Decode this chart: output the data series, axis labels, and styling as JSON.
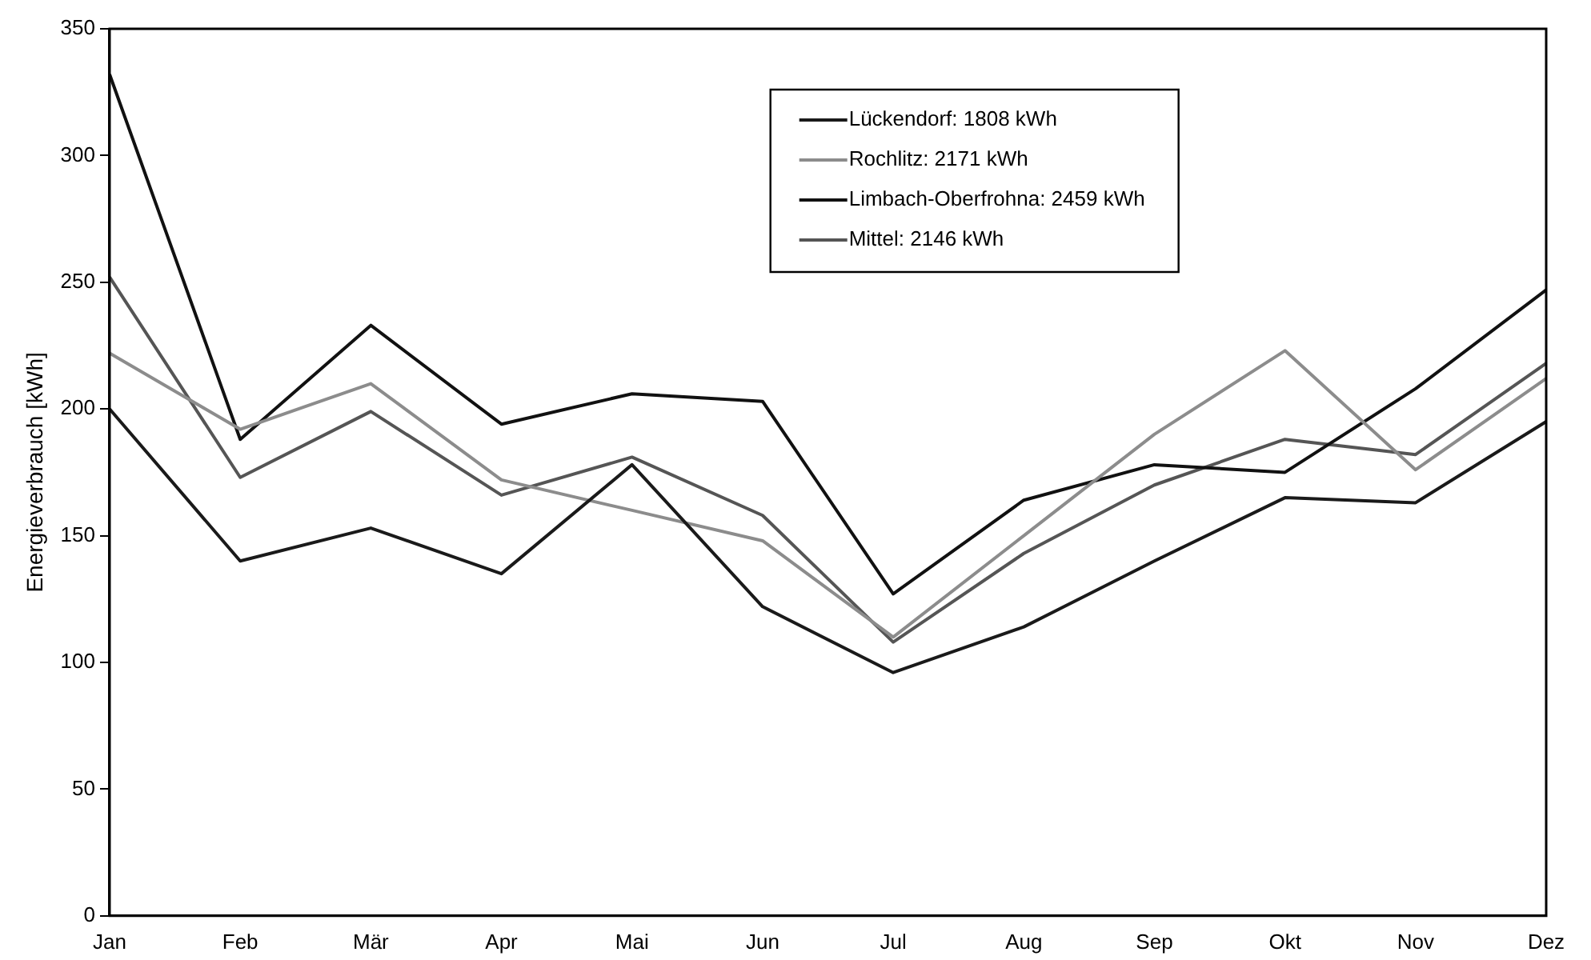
{
  "chart_data": {
    "type": "line",
    "ylabel": "Energieverbrauch [kWh]",
    "categories": [
      "Jan",
      "Feb",
      "Mär",
      "Apr",
      "Mai",
      "Jun",
      "Jul",
      "Aug",
      "Sep",
      "Okt",
      "Nov",
      "Dez"
    ],
    "series": [
      {
        "name": "Lückendorf: 1808 kWh",
        "color": "#1a1a1a",
        "values": [
          200,
          140,
          153,
          135,
          178,
          122,
          96,
          114,
          140,
          165,
          163,
          195
        ]
      },
      {
        "name": "Rochlitz: 2171 kWh",
        "color": "#8c8c8c",
        "values": [
          222,
          192,
          210,
          172,
          160,
          148,
          110,
          150,
          190,
          223,
          176,
          212
        ]
      },
      {
        "name": "Limbach-Oberfrohna: 2459 kWh",
        "color": "#111111",
        "values": [
          332,
          188,
          233,
          194,
          206,
          203,
          127,
          164,
          178,
          175,
          208,
          247
        ]
      },
      {
        "name": "Mittel: 2146 kWh",
        "color": "#555555",
        "values": [
          252,
          173,
          199,
          166,
          181,
          158,
          108,
          143,
          170,
          188,
          182,
          218
        ]
      }
    ],
    "ylim": [
      0,
      350
    ],
    "yticks": [
      0,
      50,
      100,
      150,
      200,
      250,
      300,
      350
    ],
    "grid": false,
    "legend": "top",
    "marker": "none",
    "line_style": "solid"
  }
}
